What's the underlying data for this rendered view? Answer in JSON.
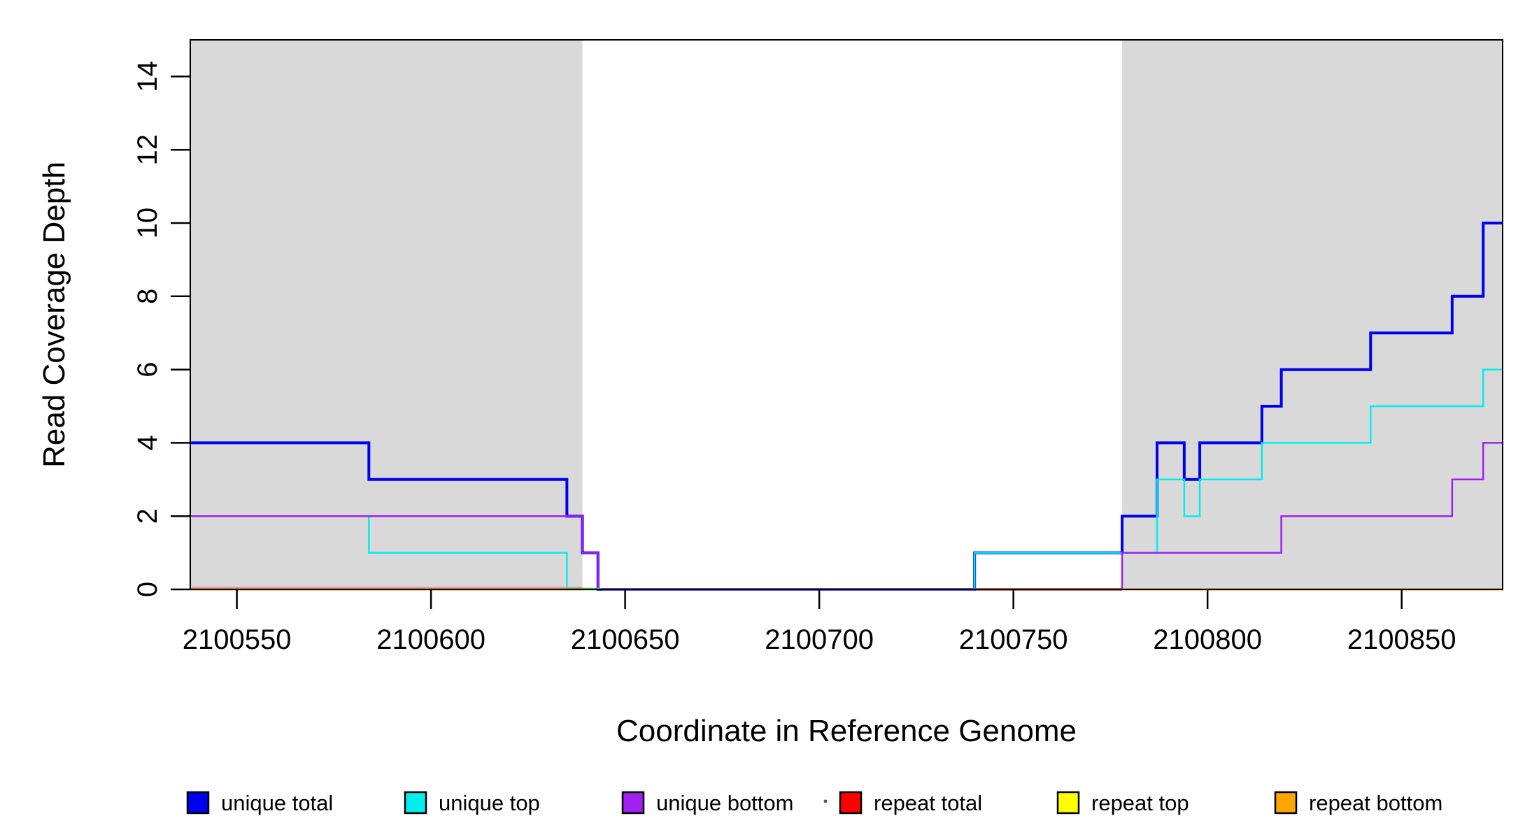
{
  "chart_data": {
    "type": "line",
    "title": "",
    "xlabel": "Coordinate in Reference Genome",
    "ylabel": "Read Coverage Depth",
    "xlim": [
      2100538,
      2100876
    ],
    "ylim": [
      0,
      15
    ],
    "x_ticks": [
      2100550,
      2100600,
      2100650,
      2100700,
      2100750,
      2100800,
      2100850
    ],
    "y_ticks": [
      0,
      2,
      4,
      6,
      8,
      10,
      12,
      14
    ],
    "grid": false,
    "legend_position": "bottom",
    "axis_color": "#000000",
    "plot_background": "#FFFFFF",
    "shaded_regions": {
      "color": "#D9D9D9",
      "meaning": "repeat-region-shading",
      "ranges": [
        [
          2100538,
          2100639
        ],
        [
          2100778,
          2100876
        ]
      ]
    },
    "x_end": 2100876,
    "series": [
      {
        "name": "unique total",
        "color": "#0000EE",
        "line_width": 4,
        "steps": [
          [
            2100538,
            4
          ],
          [
            2100584,
            3
          ],
          [
            2100635,
            2
          ],
          [
            2100639,
            1
          ],
          [
            2100643,
            0
          ],
          [
            2100740,
            1
          ],
          [
            2100778,
            2
          ],
          [
            2100787,
            4
          ],
          [
            2100794,
            3
          ],
          [
            2100798,
            4
          ],
          [
            2100814,
            5
          ],
          [
            2100819,
            6
          ],
          [
            2100842,
            7
          ],
          [
            2100863,
            8
          ],
          [
            2100871,
            10
          ]
        ]
      },
      {
        "name": "unique top",
        "color": "#00EEEE",
        "line_width": 2.5,
        "steps": [
          [
            2100538,
            2
          ],
          [
            2100584,
            1
          ],
          [
            2100635,
            0
          ],
          [
            2100740,
            1
          ],
          [
            2100787,
            3
          ],
          [
            2100794,
            2
          ],
          [
            2100798,
            3
          ],
          [
            2100814,
            4
          ],
          [
            2100842,
            5
          ],
          [
            2100871,
            6
          ]
        ]
      },
      {
        "name": "unique bottom",
        "color": "#A020F0",
        "line_width": 2.5,
        "steps": [
          [
            2100538,
            2
          ],
          [
            2100639,
            1
          ],
          [
            2100643,
            0
          ],
          [
            2100778,
            1
          ],
          [
            2100819,
            2
          ],
          [
            2100863,
            3
          ],
          [
            2100871,
            4
          ]
        ]
      },
      {
        "name": "repeat total",
        "color": "#FF0000",
        "line_width": 2.5,
        "steps": [
          [
            2100538,
            0
          ]
        ]
      },
      {
        "name": "repeat top",
        "color": "#FFFF00",
        "line_width": 2.5,
        "steps": [
          [
            2100538,
            0
          ]
        ]
      },
      {
        "name": "repeat bottom",
        "color": "#FFA500",
        "line_width": 2.5,
        "steps": [
          [
            2100538,
            0
          ]
        ]
      }
    ],
    "baseline_overlays": [
      {
        "from": 2100538,
        "to": 2100639,
        "color": "#E09898",
        "dy": -2.5,
        "width": 2
      },
      {
        "from": 2100538,
        "to": 2100639,
        "color": "#F08C00",
        "dy": 0,
        "width": 3
      },
      {
        "from": 2100635,
        "to": 2100644,
        "color": "#5FBB5F",
        "dy": -1,
        "width": 2.5
      },
      {
        "from": 2100644,
        "to": 2100740,
        "color": "#7B68EE",
        "dy": 0,
        "width": 3.5
      },
      {
        "from": 2100740,
        "to": 2100778,
        "color": "#BC4747",
        "dy": 0,
        "width": 3.5
      },
      {
        "from": 2100778,
        "to": 2100876,
        "color": "#F08C00",
        "dy": 0,
        "width": 3
      }
    ],
    "artifact_dot": {
      "x": 1180,
      "y": 1146,
      "color": "#555555"
    }
  }
}
